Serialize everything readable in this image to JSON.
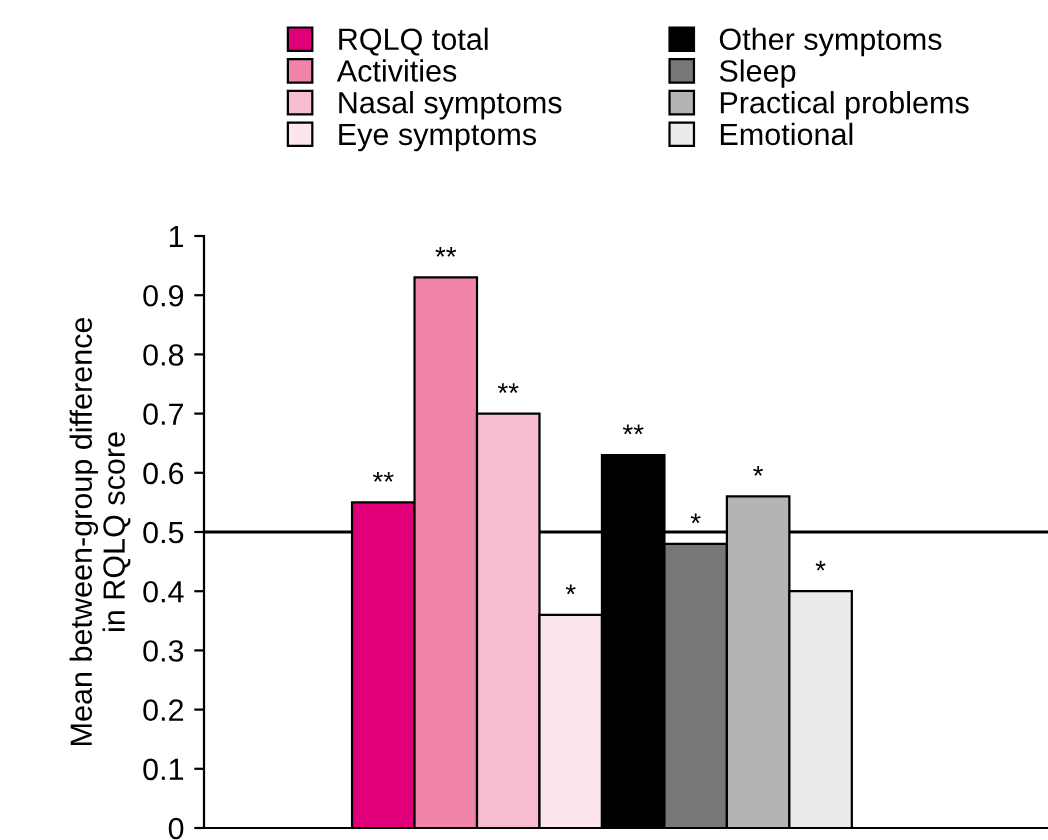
{
  "chart_data": {
    "type": "bar",
    "ylabel": "Mean between-group difference\nin RQLQ score",
    "categories": [
      null
    ],
    "series": [
      {
        "name": "RQLQ total",
        "color": "#e2007a",
        "values": [
          0.55
        ],
        "value_labels": [
          "**"
        ]
      },
      {
        "name": "Activities",
        "color": "#f084ab",
        "values": [
          0.93
        ],
        "value_labels": [
          "**"
        ]
      },
      {
        "name": "Nasal symptoms",
        "color": "#f7bcd1",
        "values": [
          0.7
        ],
        "value_labels": [
          "**"
        ]
      },
      {
        "name": "Eye symptoms",
        "color": "#fce6ec",
        "values": [
          0.36
        ],
        "value_labels": [
          "*"
        ]
      },
      {
        "name": "Other symptoms",
        "color": "#000000",
        "values": [
          0.63
        ],
        "value_labels": [
          "**"
        ]
      },
      {
        "name": "Sleep",
        "color": "#777777",
        "values": [
          0.48
        ],
        "value_labels": [
          "*"
        ]
      },
      {
        "name": "Practical problems",
        "color": "#b4b4b4",
        "values": [
          0.56
        ],
        "value_labels": [
          "*"
        ]
      },
      {
        "name": "Emotional",
        "color": "#ebebeb",
        "values": [
          0.4
        ],
        "value_labels": [
          "*"
        ]
      }
    ],
    "ylim": [
      0,
      1
    ],
    "yticks": [
      0,
      0.1,
      0.2,
      0.3,
      0.4,
      0.5,
      0.6,
      0.7,
      0.8,
      0.9,
      1
    ],
    "ref_lines": [
      {
        "axis": "y",
        "value": 0.5,
        "color": "#000000"
      }
    ],
    "grid": false,
    "legend": "top"
  }
}
